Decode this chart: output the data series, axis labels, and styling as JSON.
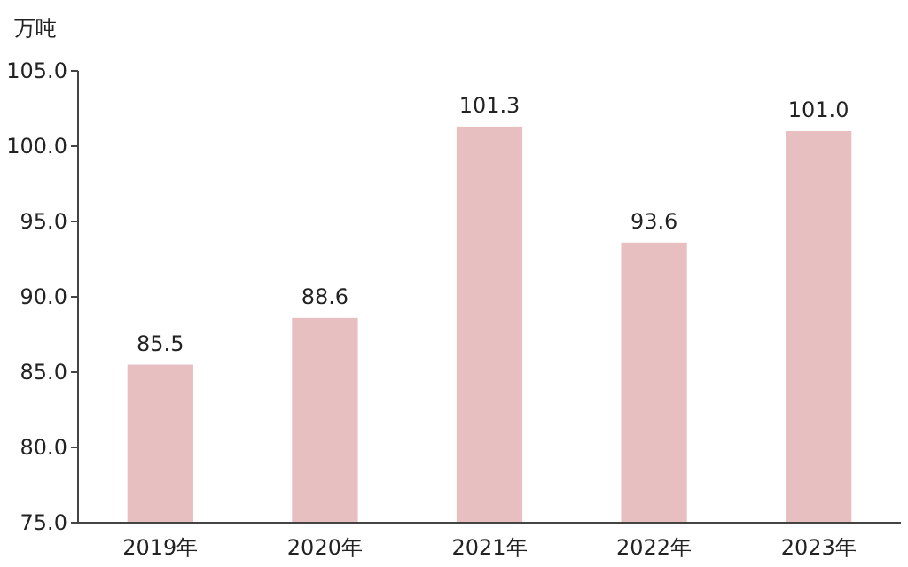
{
  "chart_data": {
    "type": "bar",
    "ylabel": "万吨",
    "categories": [
      "2019年",
      "2020年",
      "2021年",
      "2022年",
      "2023年"
    ],
    "values": [
      85.5,
      88.6,
      101.3,
      93.6,
      101.0
    ],
    "value_labels": [
      "85.5",
      "88.6",
      "101.3",
      "93.6",
      "101.0"
    ],
    "color": "#e8bfc0",
    "ylim": [
      75,
      105
    ],
    "yticks": [
      {
        "value": 75,
        "label": "75.0"
      },
      {
        "value": 80,
        "label": "80.0"
      },
      {
        "value": 85,
        "label": "85.0"
      },
      {
        "value": 90,
        "label": "90.0"
      },
      {
        "value": 95,
        "label": "95.0"
      },
      {
        "value": 100,
        "label": "100.0"
      },
      {
        "value": 105,
        "label": "105.0"
      }
    ],
    "grid": false
  }
}
